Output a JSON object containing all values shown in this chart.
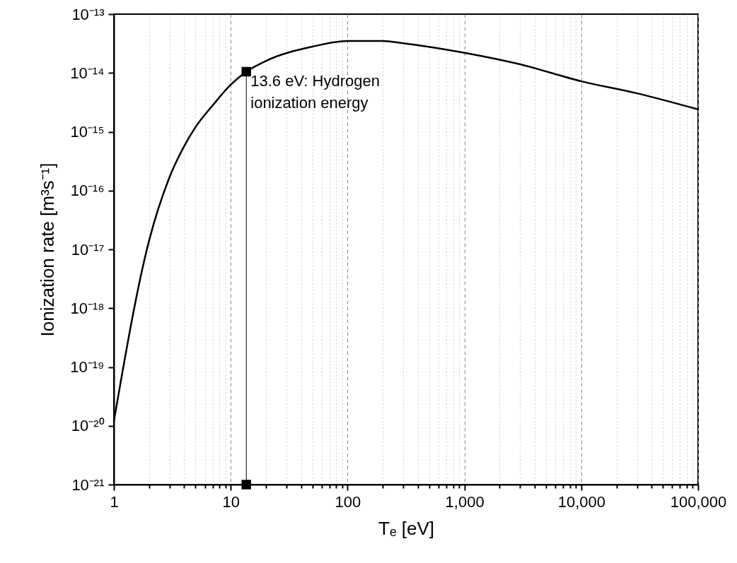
{
  "chart_data": {
    "type": "line",
    "xlabel": "Tₑ [eV]",
    "ylabel": "Ionization rate [m³s⁻¹]",
    "log": "xy",
    "grid": "x",
    "xlim": [
      1,
      100000
    ],
    "ylim": [
      1e-21,
      1e-13
    ],
    "xticks": [
      {
        "value": 1,
        "label": "1"
      },
      {
        "value": 2,
        "label": null
      },
      {
        "value": 3,
        "label": null
      },
      {
        "value": 4,
        "label": null
      },
      {
        "value": 5,
        "label": null
      },
      {
        "value": 6,
        "label": null
      },
      {
        "value": 7,
        "label": null
      },
      {
        "value": 8,
        "label": null
      },
      {
        "value": 9,
        "label": null
      },
      {
        "value": 10,
        "label": "10"
      },
      {
        "value": 20,
        "label": null
      },
      {
        "value": 30,
        "label": null
      },
      {
        "value": 40,
        "label": null
      },
      {
        "value": 50,
        "label": null
      },
      {
        "value": 60,
        "label": null
      },
      {
        "value": 70,
        "label": null
      },
      {
        "value": 80,
        "label": null
      },
      {
        "value": 90,
        "label": null
      },
      {
        "value": 100,
        "label": "100"
      },
      {
        "value": 200,
        "label": null
      },
      {
        "value": 300,
        "label": null
      },
      {
        "value": 400,
        "label": null
      },
      {
        "value": 500,
        "label": null
      },
      {
        "value": 600,
        "label": null
      },
      {
        "value": 700,
        "label": null
      },
      {
        "value": 800,
        "label": null
      },
      {
        "value": 900,
        "label": null
      },
      {
        "value": 1000,
        "label": "1,000"
      },
      {
        "value": 2000,
        "label": null
      },
      {
        "value": 3000,
        "label": null
      },
      {
        "value": 4000,
        "label": null
      },
      {
        "value": 5000,
        "label": null
      },
      {
        "value": 6000,
        "label": null
      },
      {
        "value": 7000,
        "label": null
      },
      {
        "value": 8000,
        "label": null
      },
      {
        "value": 9000,
        "label": null
      },
      {
        "value": 10000,
        "label": "10,000"
      },
      {
        "value": 20000,
        "label": null
      },
      {
        "value": 30000,
        "label": null
      },
      {
        "value": 40000,
        "label": null
      },
      {
        "value": 50000,
        "label": null
      },
      {
        "value": 60000,
        "label": null
      },
      {
        "value": 70000,
        "label": null
      },
      {
        "value": 80000,
        "label": null
      },
      {
        "value": 90000,
        "label": null
      },
      {
        "value": 100000,
        "label": "100,000"
      }
    ],
    "yticks": [
      {
        "value": 1e-21,
        "label": "10⁻²¹"
      },
      {
        "value": 1e-20,
        "label": "10⁻²⁰"
      },
      {
        "value": 1e-19,
        "label": "10⁻¹⁹"
      },
      {
        "value": 1e-18,
        "label": "10⁻¹⁸"
      },
      {
        "value": 1e-17,
        "label": "10⁻¹⁷"
      },
      {
        "value": 1e-16,
        "label": "10⁻¹⁶"
      },
      {
        "value": 1e-15,
        "label": "10⁻¹⁵"
      },
      {
        "value": 1e-14,
        "label": "10⁻¹⁴"
      },
      {
        "value": 1e-13,
        "label": "10⁻¹³"
      }
    ],
    "series": [
      {
        "color": "#000000",
        "marker": "none",
        "line_style": "solid",
        "x": [
          1,
          2,
          3,
          4,
          5,
          7,
          10,
          13.6,
          20,
          50,
          100,
          200,
          300,
          1000,
          3000,
          10000,
          30000,
          100000
        ],
        "values": [
          1.2e-20,
          1.4e-17,
          1.7e-16,
          5.7e-16,
          1.2e-15,
          2.8e-15,
          6.3e-15,
          1.05e-14,
          1.6e-14,
          2.8e-14,
          3.5e-14,
          3.5e-14,
          3.2e-14,
          2.2e-14,
          1.4e-14,
          7.2e-15,
          4.5e-15,
          2.4e-15
        ]
      },
      {
        "color": "#000000",
        "marker": "square",
        "line_style": "solid",
        "x": [
          13.6,
          13.6
        ],
        "values": [
          1e-21,
          1.05e-14
        ]
      }
    ],
    "annotations": [
      "13.6 eV: Hydrogen\n          ionization energy"
    ]
  }
}
